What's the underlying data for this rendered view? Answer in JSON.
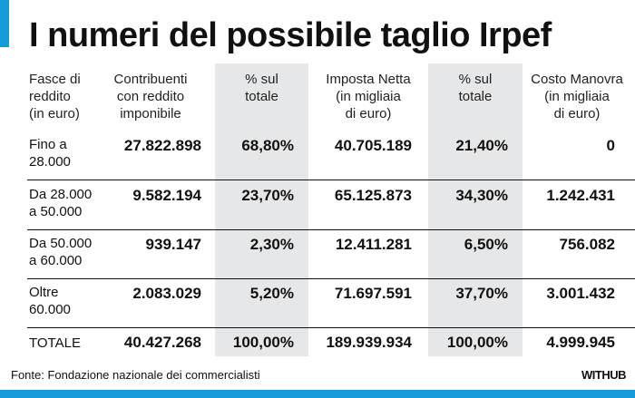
{
  "title": "I numeri del possibile taglio Irpef",
  "headers": [
    "Fasce di\nreddito\n(in euro)",
    "Contribuenti\ncon reddito\nimponibile",
    "% sul\ntotale",
    "Imposta Netta\n(in migliaia\ndi euro)",
    "% sul\ntotale",
    "Costo Manovra\n(in migliaia\ndi euro)"
  ],
  "rows": [
    {
      "fascia": "Fino a\n28.000",
      "contribuenti": "27.822.898",
      "pct1": "68,80%",
      "imposta": "40.705.189",
      "pct2": "21,40%",
      "costo": "0"
    },
    {
      "fascia": "Da 28.000\na 50.000",
      "contribuenti": "9.582.194",
      "pct1": "23,70%",
      "imposta": "65.125.873",
      "pct2": "34,30%",
      "costo": "1.242.431"
    },
    {
      "fascia": "Da 50.000\na 60.000",
      "contribuenti": "939.147",
      "pct1": "2,30%",
      "imposta": "12.411.281",
      "pct2": "6,50%",
      "costo": "756.082"
    },
    {
      "fascia": "Oltre\n60.000",
      "contribuenti": "2.083.029",
      "pct1": "5,20%",
      "imposta": "71.697.591",
      "pct2": "37,70%",
      "costo": "3.001.432"
    },
    {
      "fascia": "TOTALE",
      "contribuenti": "40.427.268",
      "pct1": "100,00%",
      "imposta": "189.939.934",
      "pct2": "100,00%",
      "costo": "4.999.945"
    }
  ],
  "footer": {
    "source": "Fonte: Fondazione nazionale dei commercialisti",
    "brand": "WITHUB"
  },
  "colors": {
    "accent": "#159bd7",
    "shade": "#e6e7e8"
  }
}
